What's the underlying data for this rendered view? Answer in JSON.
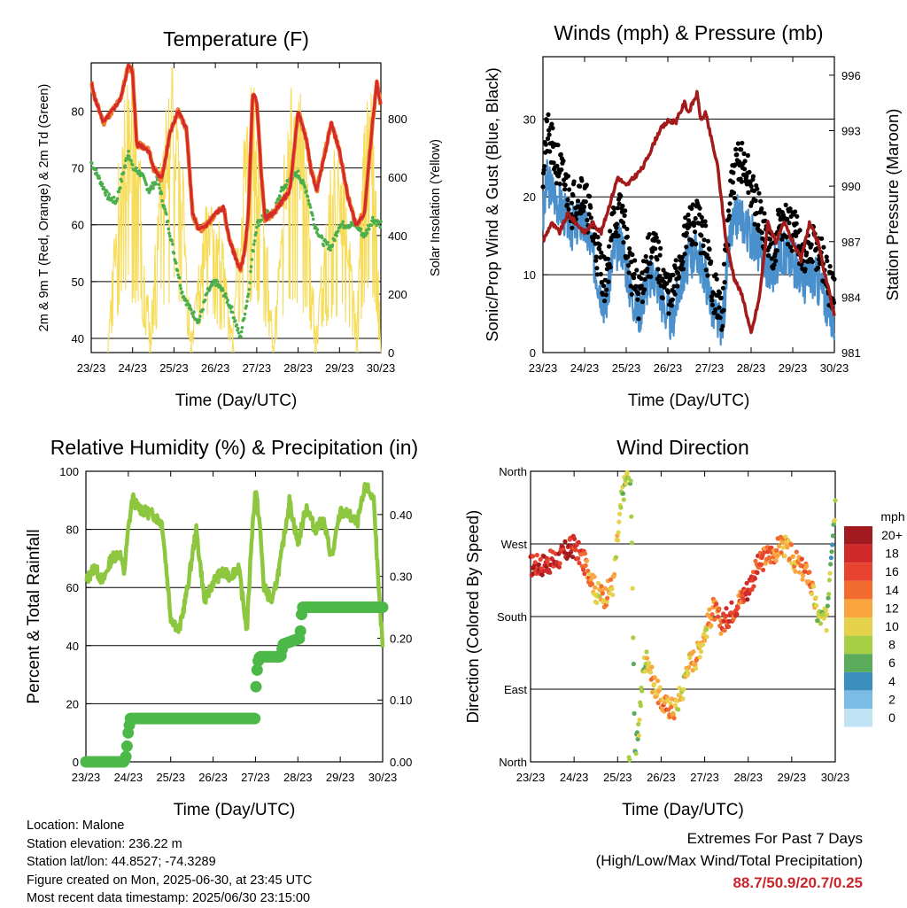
{
  "x_ticks": [
    "23/23",
    "24/23",
    "25/23",
    "26/23",
    "27/23",
    "28/23",
    "29/23",
    "30/23"
  ],
  "colors": {
    "temp2m": "#d42a2a",
    "temp9m": "#f07a2a",
    "dew": "#4cae4c",
    "solar": "#f7dc5a",
    "wind": "#4a90cc",
    "gust": "#000000",
    "pressure": "#a31a1a",
    "rh": "#8dc63f",
    "precip": "#4cb848"
  },
  "info": {
    "location": "Location: Malone",
    "elevation": "Station elevation: 236.22 m",
    "latlon": "Station lat/lon: 44.8527; -74.3289",
    "created": "Figure created on Mon, 2025-06-30, at 23:45 UTC",
    "recent": "Most recent data timestamp: 2025/06/30 23:15:00"
  },
  "extremes": {
    "line1": "Extremes For Past 7 Days",
    "line2": "(High/Low/Max Wind/Total Precipitation)",
    "values": "88.7/50.9/20.7/0.25"
  },
  "chart_data": [
    {
      "type": "line",
      "title": "Temperature (F)",
      "xlabel": "Time (Day/UTC)",
      "ylabel": "2m & 9m T (Red, Orange) & 2m Td (Green)",
      "y2label": "Solar Insolation (Yellow)",
      "xlim": [
        0,
        7
      ],
      "ylim": [
        37.5,
        88.5
      ],
      "y_ticks": [
        40,
        50,
        60,
        70,
        80
      ],
      "y2lim": [
        0,
        990
      ],
      "y2_ticks": [
        0,
        200,
        400,
        600,
        800
      ],
      "series": [
        {
          "name": "2m T",
          "x": [
            0,
            0.1,
            0.3,
            0.5,
            0.7,
            0.9,
            1.0,
            1.1,
            1.2,
            1.4,
            1.5,
            1.7,
            1.9,
            2.1,
            2.3,
            2.45,
            2.6,
            2.8,
            3.0,
            3.2,
            3.35,
            3.5,
            3.6,
            3.7,
            3.8,
            3.9,
            4.0,
            4.1,
            4.2,
            4.4,
            4.6,
            4.8,
            5.0,
            5.2,
            5.3,
            5.45,
            5.6,
            5.8,
            6.0,
            6.2,
            6.4,
            6.6,
            6.8,
            6.9,
            7.0
          ],
          "values": [
            85,
            82,
            78,
            80,
            82,
            88,
            87,
            74,
            74,
            73,
            70,
            68,
            76,
            80,
            77,
            62,
            59,
            60,
            62,
            63,
            57,
            54,
            52,
            55,
            62,
            83,
            82,
            70,
            61,
            62,
            64,
            66,
            80,
            75,
            70,
            66,
            71,
            78,
            73,
            65,
            60,
            62,
            78,
            85,
            81
          ]
        },
        {
          "name": "2m Td",
          "x": [
            0,
            0.2,
            0.4,
            0.6,
            0.8,
            0.9,
            1.0,
            1.2,
            1.4,
            1.6,
            1.8,
            2.0,
            2.2,
            2.4,
            2.6,
            2.8,
            3.0,
            3.2,
            3.4,
            3.6,
            3.8,
            3.9,
            4.0,
            4.2,
            4.4,
            4.6,
            4.8,
            5.0,
            5.2,
            5.4,
            5.6,
            5.8,
            6.0,
            6.2,
            6.4,
            6.6,
            6.8,
            7.0
          ],
          "values": [
            71,
            68,
            65,
            64,
            70,
            73,
            70,
            69,
            66,
            68,
            62,
            55,
            48,
            45,
            43,
            48,
            50,
            48,
            45,
            40,
            48,
            55,
            60,
            62,
            62,
            66,
            68,
            69,
            66,
            60,
            57,
            56,
            60,
            60,
            60,
            58,
            61,
            60
          ]
        },
        {
          "name": "Solar Insolation",
          "axis": "y2",
          "days": [
            {
              "start": 0.4,
              "peak": 0.92,
              "end": 1.45,
              "max": 940
            },
            {
              "start": 1.4,
              "peak": 1.9,
              "end": 2.45,
              "max": 980
            },
            {
              "start": 2.4,
              "peak": 2.92,
              "end": 3.45,
              "max": 560
            },
            {
              "start": 3.4,
              "peak": 3.9,
              "end": 4.4,
              "max": 940
            },
            {
              "start": 4.4,
              "peak": 4.92,
              "end": 5.45,
              "max": 960
            },
            {
              "start": 5.4,
              "peak": 5.9,
              "end": 6.45,
              "max": 700
            },
            {
              "start": 6.4,
              "peak": 6.92,
              "end": 7.0,
              "max": 950
            }
          ]
        }
      ]
    },
    {
      "type": "line",
      "title": "Winds (mph) & Pressure (mb)",
      "xlabel": "Time (Day/UTC)",
      "ylabel": "Sonic/Prop Wind & Gust (Blue, Black)",
      "y2label": "Station Pressure (Maroon)",
      "xlim": [
        0,
        7
      ],
      "ylim": [
        0,
        38
      ],
      "y_ticks": [
        0,
        10,
        20,
        30
      ],
      "y2lim": [
        981,
        997
      ],
      "y2_ticks": [
        981,
        984,
        987,
        990,
        993,
        996
      ],
      "series": [
        {
          "name": "Wind",
          "x": [
            0,
            0.1,
            0.3,
            0.5,
            0.7,
            0.9,
            1.1,
            1.3,
            1.5,
            1.7,
            1.9,
            2.1,
            2.3,
            2.5,
            2.7,
            2.9,
            3.1,
            3.3,
            3.5,
            3.7,
            3.9,
            4.1,
            4.3,
            4.5,
            4.7,
            4.9,
            5.1,
            5.3,
            5.5,
            5.7,
            5.9,
            6.1,
            6.3,
            6.5,
            6.7,
            6.9,
            7.0
          ],
          "values": [
            17,
            22,
            20,
            18,
            16,
            17,
            15,
            10,
            6,
            13,
            14,
            8,
            5,
            9,
            10,
            6,
            4,
            9,
            12,
            13,
            10,
            5,
            3,
            15,
            18,
            16,
            14,
            12,
            10,
            13,
            12,
            11,
            9,
            10,
            8,
            5,
            4
          ]
        },
        {
          "name": "Gust",
          "x": [
            0,
            0.1,
            0.3,
            0.5,
            0.7,
            0.9,
            1.1,
            1.3,
            1.5,
            1.7,
            1.9,
            2.1,
            2.3,
            2.5,
            2.7,
            2.9,
            3.1,
            3.3,
            3.5,
            3.7,
            3.9,
            4.1,
            4.3,
            4.5,
            4.7,
            4.9,
            5.1,
            5.3,
            5.5,
            5.7,
            5.9,
            6.1,
            6.3,
            6.5,
            6.7,
            6.9,
            7.0
          ],
          "values": [
            24,
            28,
            25,
            22,
            19,
            21,
            18,
            13,
            9,
            17,
            18,
            11,
            7,
            12,
            13,
            9,
            7,
            12,
            16,
            17,
            14,
            8,
            5,
            20,
            25,
            23,
            19,
            16,
            13,
            17,
            16,
            15,
            12,
            14,
            12,
            8,
            7
          ]
        },
        {
          "name": "Station Pressure",
          "axis": "y2",
          "x": [
            0,
            0.2,
            0.4,
            0.6,
            0.8,
            1.0,
            1.2,
            1.4,
            1.6,
            1.8,
            2.0,
            2.2,
            2.4,
            2.6,
            2.8,
            3.0,
            3.2,
            3.4,
            3.5,
            3.7,
            3.8,
            3.9,
            4.0,
            4.2,
            4.4,
            4.6,
            4.8,
            5.0,
            5.2,
            5.4,
            5.6,
            5.8,
            6.0,
            6.2,
            6.4,
            6.6,
            6.8,
            7.0
          ],
          "values": [
            987,
            988,
            987.5,
            988.5,
            988,
            987.5,
            988,
            987.5,
            989,
            990.5,
            990,
            990.5,
            991,
            992,
            993,
            993.5,
            993.5,
            994.5,
            994,
            995,
            993.5,
            994,
            993,
            991,
            987,
            985,
            984,
            982,
            984,
            988,
            987,
            988,
            987,
            986,
            988,
            987,
            985,
            983
          ]
        }
      ]
    },
    {
      "type": "line",
      "title": "Relative Humidity (%) & Precipitation (in)",
      "xlabel": "Time (Day/UTC)",
      "ylabel": "Percent & Total Rainfall",
      "xlim": [
        0,
        7
      ],
      "ylim": [
        0,
        100
      ],
      "y_ticks": [
        0,
        20,
        40,
        60,
        80,
        100
      ],
      "y2lim": [
        0,
        0.47
      ],
      "y2_ticks": [
        "0.00",
        "0.10",
        "0.20",
        "0.30",
        "0.40"
      ],
      "series": [
        {
          "name": "Relative Humidity",
          "x": [
            0,
            0.2,
            0.4,
            0.6,
            0.8,
            0.9,
            1.0,
            1.1,
            1.2,
            1.4,
            1.6,
            1.8,
            1.9,
            2.0,
            2.2,
            2.4,
            2.6,
            2.8,
            3.0,
            3.2,
            3.4,
            3.6,
            3.8,
            3.9,
            4.0,
            4.1,
            4.2,
            4.4,
            4.6,
            4.8,
            5.0,
            5.2,
            5.4,
            5.6,
            5.8,
            6.0,
            6.2,
            6.4,
            6.6,
            6.8,
            6.9,
            7.0
          ],
          "values": [
            62,
            67,
            62,
            70,
            72,
            65,
            80,
            91,
            88,
            86,
            85,
            82,
            66,
            50,
            45,
            60,
            80,
            55,
            62,
            65,
            64,
            67,
            45,
            75,
            94,
            82,
            60,
            55,
            70,
            90,
            75,
            88,
            80,
            83,
            70,
            86,
            85,
            82,
            95,
            90,
            60,
            40
          ]
        },
        {
          "name": "Total Precipitation",
          "axis": "y2",
          "x": [
            0,
            0.9,
            0.95,
            1.0,
            1.05,
            1.1,
            4.0,
            4.0,
            4.05,
            4.1,
            4.6,
            4.65,
            5.05,
            5.1,
            7.0
          ],
          "values": [
            0,
            0,
            0.01,
            0.05,
            0.07,
            0.07,
            0.07,
            0.11,
            0.16,
            0.17,
            0.17,
            0.19,
            0.2,
            0.25,
            0.25
          ]
        }
      ]
    },
    {
      "type": "scatter",
      "title": "Wind Direction",
      "xlabel": "Time (Day/UTC)",
      "ylabel": "Direction (Colored By Speed)",
      "xlim": [
        0,
        7
      ],
      "ylim": [
        0,
        360
      ],
      "y_ticks": [
        {
          "v": 0,
          "label": "North"
        },
        {
          "v": 90,
          "label": "East"
        },
        {
          "v": 180,
          "label": "South"
        },
        {
          "v": 270,
          "label": "West"
        },
        {
          "v": 360,
          "label": "North"
        }
      ],
      "legend": {
        "unit": "mph",
        "placement": "right",
        "labels": [
          "20+",
          "18",
          "16",
          "14",
          "12",
          "10",
          "8",
          "6",
          "4",
          "2",
          "0"
        ],
        "colors": [
          "#a11a1f",
          "#d12a2a",
          "#e8432e",
          "#f26c30",
          "#f9a43f",
          "#e6d24a",
          "#a6cf46",
          "#5aab5a",
          "#3c8fbc",
          "#7cbbe3",
          "#bfe2f5"
        ]
      },
      "series": [
        {
          "x": [
            0,
            0.3,
            0.6,
            0.8,
            1.0,
            1.2,
            1.4,
            1.5,
            1.7,
            1.9,
            2.1,
            2.2,
            2.3,
            2.4,
            2.5,
            2.5,
            2.6,
            2.7,
            2.8,
            2.9,
            3.0,
            3.1,
            3.3,
            3.5,
            3.6,
            3.8,
            3.9,
            4.0,
            4.2,
            4.4,
            4.6,
            4.8,
            5.0,
            5.2,
            5.4,
            5.6,
            5.8,
            6.0,
            6.2,
            6.4,
            6.6,
            6.8,
            6.9,
            7.0
          ],
          "dir": [
            243,
            245,
            250,
            260,
            268,
            250,
            230,
            210,
            205,
            220,
            330,
            350,
            360,
            10,
            40,
            60,
            120,
            130,
            100,
            90,
            75,
            70,
            65,
            90,
            120,
            130,
            145,
            160,
            190,
            170,
            185,
            200,
            215,
            240,
            255,
            260,
            270,
            255,
            240,
            230,
            180,
            175,
            260,
            320
          ],
          "speed": [
            18,
            18,
            18,
            19,
            17,
            15,
            12,
            10,
            12,
            11,
            9,
            8,
            7,
            6,
            8,
            9,
            7,
            11,
            12,
            12,
            13,
            13,
            11,
            9,
            10,
            12,
            11,
            10,
            14,
            15,
            16,
            14,
            18,
            16,
            14,
            13,
            12,
            11,
            13,
            14,
            8,
            9,
            6,
            8
          ]
        }
      ]
    }
  ]
}
